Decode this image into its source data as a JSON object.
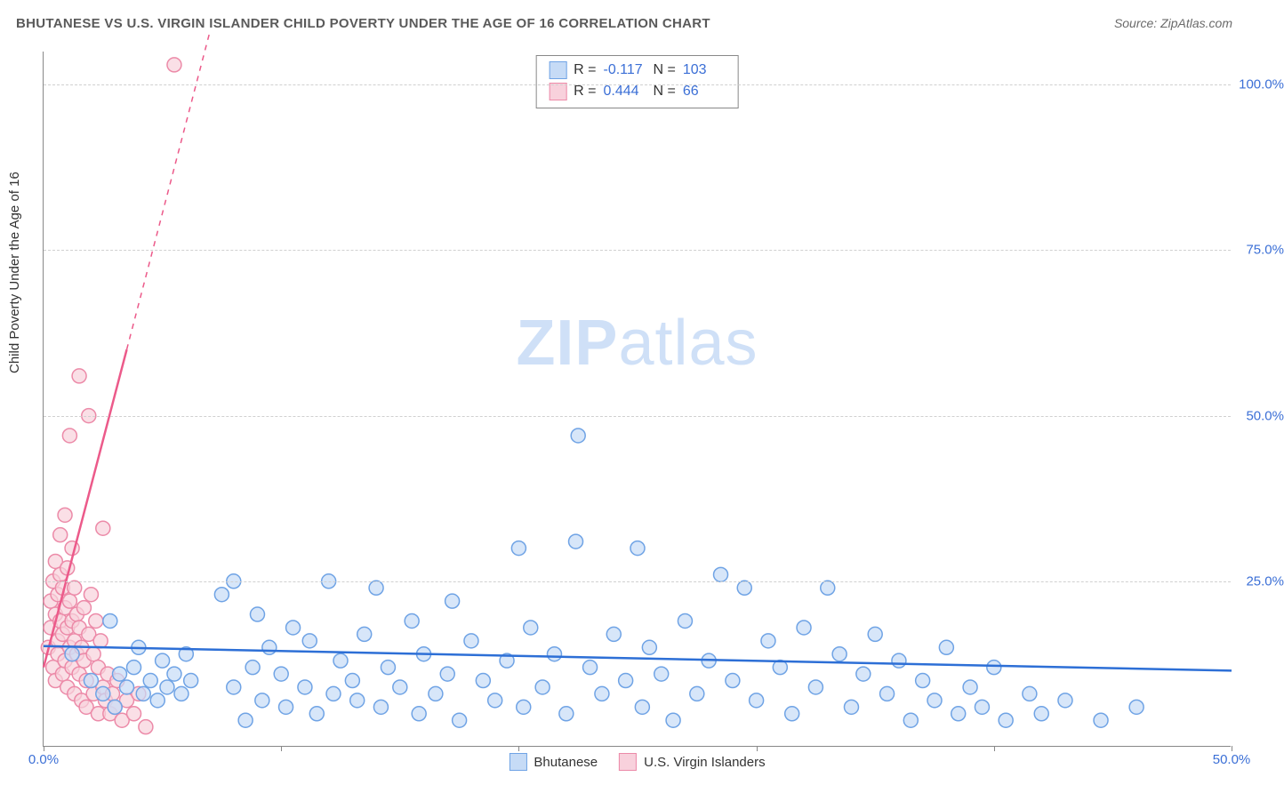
{
  "title": "BHUTANESE VS U.S. VIRGIN ISLANDER CHILD POVERTY UNDER THE AGE OF 16 CORRELATION CHART",
  "source": "Source: ZipAtlas.com",
  "y_axis_label": "Child Poverty Under the Age of 16",
  "watermark_bold": "ZIP",
  "watermark_rest": "atlas",
  "chart": {
    "type": "scatter",
    "xlim": [
      0,
      50
    ],
    "ylim": [
      0,
      105
    ],
    "x_ticks": [
      0,
      10,
      20,
      30,
      40,
      50
    ],
    "x_tick_labels": {
      "0": "0.0%",
      "50": "50.0%"
    },
    "y_ticks": [
      25,
      50,
      75,
      100
    ],
    "y_tick_labels": {
      "25": "25.0%",
      "50": "50.0%",
      "75": "75.0%",
      "100": "100.0%"
    },
    "grid_color": "#d0d0d0",
    "background_color": "#ffffff",
    "axis_color": "#888888",
    "label_color": "#3b6fd6",
    "marker_radius": 8,
    "marker_stroke_width": 1.5,
    "trend_line_width": 2.5,
    "series": [
      {
        "name": "Bhutanese",
        "fill": "#c6dbf6",
        "stroke": "#6fa3e5",
        "trend_color": "#2d6fd6",
        "trend_dashed": false,
        "trend": {
          "x1": 0,
          "y1": 15.2,
          "x2": 50,
          "y2": 11.5
        },
        "R": "-0.117",
        "N": "103",
        "points": [
          [
            1.2,
            14
          ],
          [
            2.0,
            10
          ],
          [
            2.5,
            8
          ],
          [
            2.8,
            19
          ],
          [
            3.0,
            6
          ],
          [
            3.2,
            11
          ],
          [
            3.5,
            9
          ],
          [
            3.8,
            12
          ],
          [
            4.0,
            15
          ],
          [
            4.2,
            8
          ],
          [
            4.5,
            10
          ],
          [
            4.8,
            7
          ],
          [
            5.0,
            13
          ],
          [
            5.2,
            9
          ],
          [
            5.5,
            11
          ],
          [
            5.8,
            8
          ],
          [
            6.0,
            14
          ],
          [
            6.2,
            10
          ],
          [
            7.5,
            23
          ],
          [
            8.0,
            25
          ],
          [
            8.0,
            9
          ],
          [
            8.5,
            4
          ],
          [
            8.8,
            12
          ],
          [
            9.0,
            20
          ],
          [
            9.2,
            7
          ],
          [
            9.5,
            15
          ],
          [
            10.0,
            11
          ],
          [
            10.2,
            6
          ],
          [
            10.5,
            18
          ],
          [
            11.0,
            9
          ],
          [
            11.2,
            16
          ],
          [
            11.5,
            5
          ],
          [
            12.0,
            25
          ],
          [
            12.2,
            8
          ],
          [
            12.5,
            13
          ],
          [
            13.0,
            10
          ],
          [
            13.2,
            7
          ],
          [
            13.5,
            17
          ],
          [
            14.0,
            24
          ],
          [
            14.2,
            6
          ],
          [
            14.5,
            12
          ],
          [
            15.0,
            9
          ],
          [
            15.5,
            19
          ],
          [
            15.8,
            5
          ],
          [
            16.0,
            14
          ],
          [
            16.5,
            8
          ],
          [
            17.0,
            11
          ],
          [
            17.2,
            22
          ],
          [
            17.5,
            4
          ],
          [
            18.0,
            16
          ],
          [
            18.5,
            10
          ],
          [
            19.0,
            7
          ],
          [
            19.5,
            13
          ],
          [
            20.0,
            30
          ],
          [
            20.2,
            6
          ],
          [
            20.5,
            18
          ],
          [
            21.0,
            9
          ],
          [
            21.5,
            14
          ],
          [
            22.0,
            5
          ],
          [
            22.5,
            47
          ],
          [
            22.4,
            31
          ],
          [
            23.0,
            12
          ],
          [
            23.5,
            8
          ],
          [
            24.0,
            17
          ],
          [
            24.5,
            10
          ],
          [
            25.0,
            30
          ],
          [
            25.2,
            6
          ],
          [
            25.5,
            15
          ],
          [
            26.0,
            11
          ],
          [
            26.5,
            4
          ],
          [
            27.0,
            19
          ],
          [
            27.5,
            8
          ],
          [
            28.0,
            13
          ],
          [
            28.5,
            26
          ],
          [
            29.0,
            10
          ],
          [
            29.5,
            24
          ],
          [
            30.0,
            7
          ],
          [
            30.5,
            16
          ],
          [
            31.0,
            12
          ],
          [
            31.5,
            5
          ],
          [
            32.0,
            18
          ],
          [
            32.5,
            9
          ],
          [
            33.0,
            24
          ],
          [
            33.5,
            14
          ],
          [
            34.0,
            6
          ],
          [
            34.5,
            11
          ],
          [
            35.0,
            17
          ],
          [
            35.5,
            8
          ],
          [
            36.0,
            13
          ],
          [
            36.5,
            4
          ],
          [
            37.0,
            10
          ],
          [
            37.5,
            7
          ],
          [
            38.0,
            15
          ],
          [
            38.5,
            5
          ],
          [
            39.0,
            9
          ],
          [
            39.5,
            6
          ],
          [
            40.0,
            12
          ],
          [
            40.5,
            4
          ],
          [
            41.5,
            8
          ],
          [
            42.0,
            5
          ],
          [
            43.0,
            7
          ],
          [
            44.5,
            4
          ],
          [
            46.0,
            6
          ]
        ]
      },
      {
        "name": "U.S. Virgin Islanders",
        "fill": "#f8d1dc",
        "stroke": "#ec8aa8",
        "trend_color": "#ec5a8a",
        "trend_dashed_ext": true,
        "trend": {
          "x1": 0,
          "y1": 12,
          "x2": 3.5,
          "y2": 60
        },
        "trend_ext": {
          "x1": 3.5,
          "y1": 60,
          "x2": 7.0,
          "y2": 108
        },
        "R": "0.444",
        "N": "66",
        "points": [
          [
            0.2,
            15
          ],
          [
            0.3,
            18
          ],
          [
            0.3,
            22
          ],
          [
            0.4,
            12
          ],
          [
            0.4,
            25
          ],
          [
            0.5,
            10
          ],
          [
            0.5,
            28
          ],
          [
            0.5,
            20
          ],
          [
            0.6,
            16
          ],
          [
            0.6,
            23
          ],
          [
            0.6,
            14
          ],
          [
            0.7,
            19
          ],
          [
            0.7,
            26
          ],
          [
            0.7,
            32
          ],
          [
            0.8,
            11
          ],
          [
            0.8,
            17
          ],
          [
            0.8,
            24
          ],
          [
            0.9,
            13
          ],
          [
            0.9,
            21
          ],
          [
            0.9,
            35
          ],
          [
            1.0,
            9
          ],
          [
            1.0,
            18
          ],
          [
            1.0,
            27
          ],
          [
            1.1,
            15
          ],
          [
            1.1,
            22
          ],
          [
            1.1,
            47
          ],
          [
            1.2,
            12
          ],
          [
            1.2,
            19
          ],
          [
            1.2,
            30
          ],
          [
            1.3,
            8
          ],
          [
            1.3,
            16
          ],
          [
            1.3,
            24
          ],
          [
            1.4,
            14
          ],
          [
            1.4,
            20
          ],
          [
            1.5,
            11
          ],
          [
            1.5,
            18
          ],
          [
            1.5,
            56
          ],
          [
            1.6,
            7
          ],
          [
            1.6,
            15
          ],
          [
            1.7,
            13
          ],
          [
            1.7,
            21
          ],
          [
            1.8,
            6
          ],
          [
            1.8,
            10
          ],
          [
            1.9,
            17
          ],
          [
            1.9,
            50
          ],
          [
            2.0,
            23
          ],
          [
            2.1,
            8
          ],
          [
            2.1,
            14
          ],
          [
            2.2,
            19
          ],
          [
            2.3,
            5
          ],
          [
            2.3,
            12
          ],
          [
            2.4,
            16
          ],
          [
            2.5,
            9
          ],
          [
            2.5,
            33
          ],
          [
            2.6,
            7
          ],
          [
            2.7,
            11
          ],
          [
            2.8,
            5
          ],
          [
            2.9,
            8
          ],
          [
            3.0,
            6
          ],
          [
            3.1,
            10
          ],
          [
            3.3,
            4
          ],
          [
            3.5,
            7
          ],
          [
            3.8,
            5
          ],
          [
            4.0,
            8
          ],
          [
            4.3,
            3
          ],
          [
            5.5,
            103
          ]
        ]
      }
    ]
  },
  "legend": {
    "series1": "Bhutanese",
    "series2": "U.S. Virgin Islanders"
  },
  "stats_labels": {
    "R": "R =",
    "N": "N ="
  }
}
